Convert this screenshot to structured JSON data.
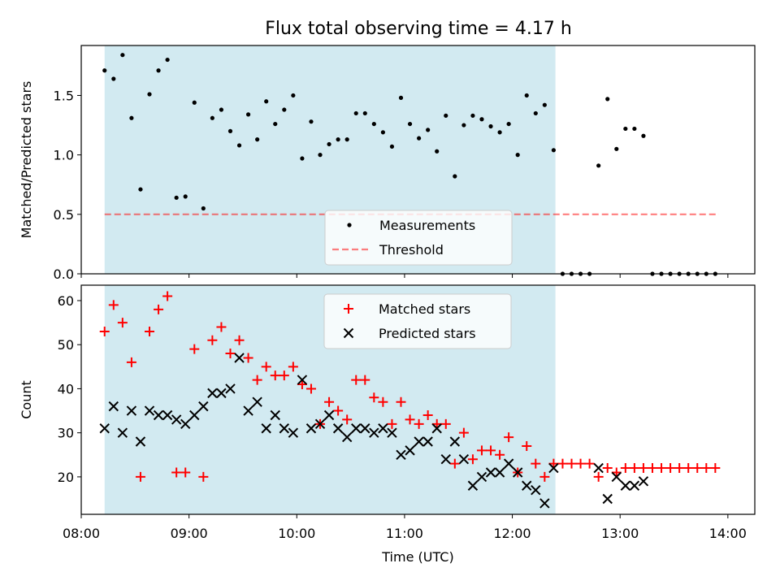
{
  "title": "Flux total observing time = 4.17 h",
  "colors": {
    "shade": "#add8e6",
    "measurement": "#000000",
    "threshold": "#ff0000",
    "matched": "#ff0000",
    "predicted": "#000000"
  },
  "chart_data": [
    {
      "type": "scatter",
      "ylabel": "Matched/Predicted stars",
      "xlim": [
        "08:00",
        "14:15"
      ],
      "ylim": [
        0,
        1.92
      ],
      "yticks": [
        "0.0",
        "0.5",
        "1.0",
        "1.5"
      ],
      "shaded_span": [
        "08:13",
        "12:24"
      ],
      "threshold": 0.5,
      "threshold_span": [
        "08:13",
        "13:55"
      ],
      "legend": {
        "position": "bottom-center",
        "entries": [
          "Measurements",
          "Threshold"
        ]
      },
      "series": [
        {
          "name": "Measurements",
          "marker": "dot",
          "points": [
            [
              "08:13",
              1.71
            ],
            [
              "08:18",
              1.64
            ],
            [
              "08:23",
              1.84
            ],
            [
              "08:28",
              1.31
            ],
            [
              "08:33",
              0.71
            ],
            [
              "08:38",
              1.51
            ],
            [
              "08:43",
              1.71
            ],
            [
              "08:48",
              1.8
            ],
            [
              "08:53",
              0.64
            ],
            [
              "08:58",
              0.65
            ],
            [
              "09:03",
              1.44
            ],
            [
              "09:08",
              0.55
            ],
            [
              "09:13",
              1.31
            ],
            [
              "09:18",
              1.38
            ],
            [
              "09:23",
              1.2
            ],
            [
              "09:28",
              1.08
            ],
            [
              "09:33",
              1.34
            ],
            [
              "09:38",
              1.13
            ],
            [
              "09:43",
              1.45
            ],
            [
              "09:48",
              1.26
            ],
            [
              "09:53",
              1.38
            ],
            [
              "09:58",
              1.5
            ],
            [
              "10:03",
              0.97
            ],
            [
              "10:08",
              1.28
            ],
            [
              "10:13",
              1.0
            ],
            [
              "10:18",
              1.09
            ],
            [
              "10:23",
              1.13
            ],
            [
              "10:28",
              1.13
            ],
            [
              "10:33",
              1.35
            ],
            [
              "10:38",
              1.35
            ],
            [
              "10:43",
              1.26
            ],
            [
              "10:48",
              1.19
            ],
            [
              "10:53",
              1.07
            ],
            [
              "10:58",
              1.48
            ],
            [
              "11:03",
              1.26
            ],
            [
              "11:08",
              1.14
            ],
            [
              "11:13",
              1.21
            ],
            [
              "11:18",
              1.03
            ],
            [
              "11:23",
              1.33
            ],
            [
              "11:28",
              0.82
            ],
            [
              "11:33",
              1.25
            ],
            [
              "11:38",
              1.33
            ],
            [
              "11:43",
              1.3
            ],
            [
              "11:48",
              1.24
            ],
            [
              "11:53",
              1.19
            ],
            [
              "11:58",
              1.26
            ],
            [
              "12:03",
              1.0
            ],
            [
              "12:08",
              1.5
            ],
            [
              "12:13",
              1.35
            ],
            [
              "12:18",
              1.42
            ],
            [
              "12:23",
              1.04
            ],
            [
              "12:28",
              0.0
            ],
            [
              "12:33",
              0.0
            ],
            [
              "12:38",
              0.0
            ],
            [
              "12:43",
              0.0
            ],
            [
              "12:48",
              0.91
            ],
            [
              "12:53",
              1.47
            ],
            [
              "12:58",
              1.05
            ],
            [
              "13:03",
              1.22
            ],
            [
              "13:08",
              1.22
            ],
            [
              "13:13",
              1.16
            ],
            [
              "13:18",
              0.0
            ],
            [
              "13:23",
              0.0
            ],
            [
              "13:28",
              0.0
            ],
            [
              "13:33",
              0.0
            ],
            [
              "13:38",
              0.0
            ],
            [
              "13:43",
              0.0
            ],
            [
              "13:48",
              0.0
            ],
            [
              "13:53",
              0.0
            ]
          ]
        }
      ]
    },
    {
      "type": "scatter",
      "xlabel": "Time (UTC)",
      "ylabel": "Count",
      "xlim": [
        "08:00",
        "14:15"
      ],
      "ylim": [
        11.5,
        63.5
      ],
      "xticks": [
        "08:00",
        "09:00",
        "10:00",
        "11:00",
        "12:00",
        "13:00",
        "14:00"
      ],
      "yticks": [
        "20",
        "30",
        "40",
        "50",
        "60"
      ],
      "shaded_span": [
        "08:13",
        "12:24"
      ],
      "legend": {
        "position": "top-center",
        "entries": [
          "Matched stars",
          "Predicted stars"
        ]
      },
      "series": [
        {
          "name": "Matched stars",
          "marker": "plus",
          "points": [
            [
              "08:13",
              53
            ],
            [
              "08:18",
              59
            ],
            [
              "08:23",
              55
            ],
            [
              "08:28",
              46
            ],
            [
              "08:33",
              20
            ],
            [
              "08:38",
              53
            ],
            [
              "08:43",
              58
            ],
            [
              "08:48",
              61
            ],
            [
              "08:53",
              21
            ],
            [
              "08:58",
              21
            ],
            [
              "09:03",
              49
            ],
            [
              "09:08",
              20
            ],
            [
              "09:13",
              51
            ],
            [
              "09:18",
              54
            ],
            [
              "09:23",
              48
            ],
            [
              "09:28",
              51
            ],
            [
              "09:33",
              47
            ],
            [
              "09:38",
              42
            ],
            [
              "09:43",
              45
            ],
            [
              "09:48",
              43
            ],
            [
              "09:53",
              43
            ],
            [
              "09:58",
              45
            ],
            [
              "10:03",
              41
            ],
            [
              "10:08",
              40
            ],
            [
              "10:13",
              32
            ],
            [
              "10:18",
              37
            ],
            [
              "10:23",
              35
            ],
            [
              "10:28",
              33
            ],
            [
              "10:33",
              42
            ],
            [
              "10:38",
              42
            ],
            [
              "10:43",
              38
            ],
            [
              "10:48",
              37
            ],
            [
              "10:53",
              32
            ],
            [
              "10:58",
              37
            ],
            [
              "11:03",
              33
            ],
            [
              "11:08",
              32
            ],
            [
              "11:13",
              34
            ],
            [
              "11:18",
              32
            ],
            [
              "11:23",
              32
            ],
            [
              "11:28",
              23
            ],
            [
              "11:33",
              30
            ],
            [
              "11:38",
              24
            ],
            [
              "11:43",
              26
            ],
            [
              "11:48",
              26
            ],
            [
              "11:53",
              25
            ],
            [
              "11:58",
              29
            ],
            [
              "12:03",
              21
            ],
            [
              "12:08",
              27
            ],
            [
              "12:13",
              23
            ],
            [
              "12:18",
              20
            ],
            [
              "12:23",
              23
            ],
            [
              "12:28",
              23
            ],
            [
              "12:33",
              23
            ],
            [
              "12:38",
              23
            ],
            [
              "12:43",
              23
            ],
            [
              "12:48",
              20
            ],
            [
              "12:53",
              22
            ],
            [
              "12:58",
              21
            ],
            [
              "13:03",
              22
            ],
            [
              "13:08",
              22
            ],
            [
              "13:13",
              22
            ],
            [
              "13:18",
              22
            ],
            [
              "13:23",
              22
            ],
            [
              "13:28",
              22
            ],
            [
              "13:33",
              22
            ],
            [
              "13:38",
              22
            ],
            [
              "13:43",
              22
            ],
            [
              "13:48",
              22
            ],
            [
              "13:53",
              22
            ]
          ]
        },
        {
          "name": "Predicted stars",
          "marker": "x",
          "points": [
            [
              "08:13",
              31
            ],
            [
              "08:18",
              36
            ],
            [
              "08:23",
              30
            ],
            [
              "08:28",
              35
            ],
            [
              "08:33",
              28
            ],
            [
              "08:38",
              35
            ],
            [
              "08:43",
              34
            ],
            [
              "08:48",
              34
            ],
            [
              "08:53",
              33
            ],
            [
              "08:58",
              32
            ],
            [
              "09:03",
              34
            ],
            [
              "09:08",
              36
            ],
            [
              "09:13",
              39
            ],
            [
              "09:18",
              39
            ],
            [
              "09:23",
              40
            ],
            [
              "09:28",
              47
            ],
            [
              "09:33",
              35
            ],
            [
              "09:38",
              37
            ],
            [
              "09:43",
              31
            ],
            [
              "09:48",
              34
            ],
            [
              "09:53",
              31
            ],
            [
              "09:58",
              30
            ],
            [
              "10:03",
              42
            ],
            [
              "10:08",
              31
            ],
            [
              "10:13",
              32
            ],
            [
              "10:18",
              34
            ],
            [
              "10:23",
              31
            ],
            [
              "10:28",
              29
            ],
            [
              "10:33",
              31
            ],
            [
              "10:38",
              31
            ],
            [
              "10:43",
              30
            ],
            [
              "10:48",
              31
            ],
            [
              "10:53",
              30
            ],
            [
              "10:58",
              25
            ],
            [
              "11:03",
              26
            ],
            [
              "11:08",
              28
            ],
            [
              "11:13",
              28
            ],
            [
              "11:18",
              31
            ],
            [
              "11:23",
              24
            ],
            [
              "11:28",
              28
            ],
            [
              "11:33",
              24
            ],
            [
              "11:38",
              18
            ],
            [
              "11:43",
              20
            ],
            [
              "11:48",
              21
            ],
            [
              "11:53",
              21
            ],
            [
              "11:58",
              23
            ],
            [
              "12:03",
              21
            ],
            [
              "12:08",
              18
            ],
            [
              "12:13",
              17
            ],
            [
              "12:18",
              14
            ],
            [
              "12:23",
              22
            ],
            [
              "12:48",
              22
            ],
            [
              "12:53",
              15
            ],
            [
              "12:58",
              20
            ],
            [
              "13:03",
              18
            ],
            [
              "13:08",
              18
            ],
            [
              "13:13",
              19
            ]
          ]
        }
      ]
    }
  ]
}
